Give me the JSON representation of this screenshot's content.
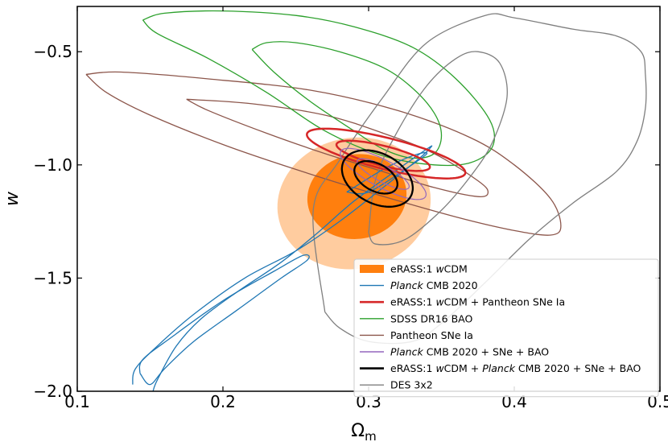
{
  "chart_data": {
    "type": "contour",
    "title": "",
    "xlabel": "Ω",
    "xlabel_sub": "m",
    "ylabel": "w",
    "xlim": [
      0.1,
      0.5
    ],
    "ylim": [
      -2.0,
      -0.3
    ],
    "x_ticks": [
      0.1,
      0.2,
      0.3,
      0.4,
      0.5
    ],
    "x_tick_labels": [
      "0.1",
      "0.2",
      "0.3",
      "0.4",
      "0.5"
    ],
    "y_ticks": [
      -2.0,
      -1.5,
      -1.0,
      -0.5
    ],
    "y_tick_labels": [
      "−2.0",
      "−1.5",
      "−1.0",
      "−0.5"
    ],
    "grid": false,
    "legend_position": "lower-right",
    "legend": [
      {
        "key": "erass_wcdm",
        "parts": [
          {
            "t": "eRASS:1 "
          },
          {
            "t": "w",
            "i": true
          },
          {
            "t": "CDM"
          }
        ],
        "color": "#ff7f0e",
        "style": "patch"
      },
      {
        "key": "planck",
        "parts": [
          {
            "t": "Planck",
            "i": true
          },
          {
            "t": " CMB 2020"
          }
        ],
        "color": "#1f77b4",
        "style": "line"
      },
      {
        "key": "erass_sne",
        "parts": [
          {
            "t": "eRASS:1 "
          },
          {
            "t": "w",
            "i": true
          },
          {
            "t": "CDM + Pantheon SNe Ia"
          }
        ],
        "color": "#d62728",
        "style": "thick"
      },
      {
        "key": "sdss",
        "parts": [
          {
            "t": "SDSS DR16 BAO"
          }
        ],
        "color": "#2ca02c",
        "style": "line"
      },
      {
        "key": "pantheon",
        "parts": [
          {
            "t": "Pantheon SNe Ia"
          }
        ],
        "color": "#8c564b",
        "style": "line"
      },
      {
        "key": "planck_sne_bao",
        "parts": [
          {
            "t": "Planck",
            "i": true
          },
          {
            "t": " CMB 2020 + SNe + BAO"
          }
        ],
        "color": "#9467bd",
        "style": "line"
      },
      {
        "key": "erass_all",
        "parts": [
          {
            "t": "eRASS:1 "
          },
          {
            "t": "w",
            "i": true
          },
          {
            "t": "CDM + "
          },
          {
            "t": "Planck",
            "i": true
          },
          {
            "t": " CMB 2020 + SNe + BAO"
          }
        ],
        "color": "#000000",
        "style": "thick"
      },
      {
        "key": "des",
        "parts": [
          {
            "t": "DES 3x2"
          }
        ],
        "color": "#7f7f7f",
        "style": "line"
      }
    ],
    "series": [
      {
        "key": "erass_wcdm",
        "kind": "filled-ellipse",
        "color": "#ff7f0e",
        "levels": [
          {
            "cx": 0.29,
            "cy": -1.17,
            "a": 0.045,
            "b": 0.34,
            "angle_deg": 10,
            "opacity": 0.4
          },
          {
            "cx": 0.292,
            "cy": -1.14,
            "a": 0.029,
            "b": 0.22,
            "angle_deg": 10,
            "opacity": 1.0
          }
        ]
      },
      {
        "key": "pantheon",
        "kind": "path",
        "color": "#8c564b",
        "width": 1.3,
        "contours": [
          [
            [
              0.106,
              -0.6
            ],
            [
              0.13,
              -0.59
            ],
            [
              0.19,
              -0.62
            ],
            [
              0.26,
              -0.67
            ],
            [
              0.32,
              -0.76
            ],
            [
              0.37,
              -0.88
            ],
            [
              0.4,
              -1.0
            ],
            [
              0.425,
              -1.15
            ],
            [
              0.432,
              -1.27
            ],
            [
              0.425,
              -1.31
            ],
            [
              0.4,
              -1.29
            ],
            [
              0.36,
              -1.23
            ],
            [
              0.3,
              -1.12
            ],
            [
              0.25,
              -1.02
            ],
            [
              0.2,
              -0.91
            ],
            [
              0.15,
              -0.78
            ],
            [
              0.12,
              -0.68
            ],
            [
              0.106,
              -0.6
            ]
          ],
          [
            [
              0.175,
              -0.71
            ],
            [
              0.22,
              -0.73
            ],
            [
              0.27,
              -0.78
            ],
            [
              0.31,
              -0.86
            ],
            [
              0.345,
              -0.95
            ],
            [
              0.375,
              -1.07
            ],
            [
              0.382,
              -1.12
            ],
            [
              0.375,
              -1.14
            ],
            [
              0.345,
              -1.1
            ],
            [
              0.31,
              -1.03
            ],
            [
              0.27,
              -0.95
            ],
            [
              0.23,
              -0.86
            ],
            [
              0.19,
              -0.76
            ],
            [
              0.175,
              -0.71
            ]
          ]
        ]
      },
      {
        "key": "sdss",
        "kind": "path",
        "color": "#2ca02c",
        "width": 1.3,
        "contours": [
          [
            [
              0.145,
              -0.36
            ],
            [
              0.16,
              -0.33
            ],
            [
              0.2,
              -0.32
            ],
            [
              0.25,
              -0.34
            ],
            [
              0.29,
              -0.39
            ],
            [
              0.33,
              -0.48
            ],
            [
              0.36,
              -0.62
            ],
            [
              0.383,
              -0.8
            ],
            [
              0.385,
              -0.92
            ],
            [
              0.37,
              -0.99
            ],
            [
              0.345,
              -1.0
            ],
            [
              0.31,
              -0.96
            ],
            [
              0.27,
              -0.85
            ],
            [
              0.23,
              -0.68
            ],
            [
              0.19,
              -0.53
            ],
            [
              0.155,
              -0.42
            ],
            [
              0.145,
              -0.36
            ]
          ],
          [
            [
              0.22,
              -0.49
            ],
            [
              0.23,
              -0.46
            ],
            [
              0.25,
              -0.46
            ],
            [
              0.28,
              -0.5
            ],
            [
              0.31,
              -0.57
            ],
            [
              0.33,
              -0.66
            ],
            [
              0.345,
              -0.77
            ],
            [
              0.35,
              -0.87
            ],
            [
              0.345,
              -0.95
            ],
            [
              0.33,
              -0.97
            ],
            [
              0.31,
              -0.93
            ],
            [
              0.29,
              -0.85
            ],
            [
              0.26,
              -0.72
            ],
            [
              0.235,
              -0.59
            ],
            [
              0.22,
              -0.49
            ]
          ]
        ]
      },
      {
        "key": "des",
        "kind": "path",
        "color": "#7f7f7f",
        "width": 1.3,
        "contours": [
          [
            [
              0.27,
              -1.65
            ],
            [
              0.262,
              -1.2
            ],
            [
              0.28,
              -0.98
            ],
            [
              0.31,
              -0.7
            ],
            [
              0.34,
              -0.46
            ],
            [
              0.38,
              -0.34
            ],
            [
              0.4,
              -0.35
            ],
            [
              0.44,
              -0.4
            ],
            [
              0.47,
              -0.43
            ],
            [
              0.487,
              -0.5
            ],
            [
              0.49,
              -0.6
            ],
            [
              0.49,
              -0.75
            ],
            [
              0.484,
              -0.9
            ],
            [
              0.47,
              -1.03
            ],
            [
              0.44,
              -1.17
            ],
            [
              0.41,
              -1.33
            ],
            [
              0.38,
              -1.52
            ],
            [
              0.35,
              -1.7
            ],
            [
              0.33,
              -1.78
            ],
            [
              0.3,
              -1.78
            ],
            [
              0.28,
              -1.72
            ],
            [
              0.27,
              -1.65
            ]
          ],
          [
            [
              0.3,
              -1.3
            ],
            [
              0.305,
              -1.06
            ],
            [
              0.32,
              -0.85
            ],
            [
              0.34,
              -0.65
            ],
            [
              0.36,
              -0.53
            ],
            [
              0.375,
              -0.5
            ],
            [
              0.39,
              -0.55
            ],
            [
              0.395,
              -0.7
            ],
            [
              0.385,
              -0.9
            ],
            [
              0.37,
              -1.05
            ],
            [
              0.35,
              -1.2
            ],
            [
              0.325,
              -1.33
            ],
            [
              0.305,
              -1.35
            ],
            [
              0.3,
              -1.3
            ]
          ]
        ]
      },
      {
        "key": "planck",
        "kind": "path",
        "color": "#1f77b4",
        "width": 1.3,
        "contours": [
          [
            [
              0.138,
              -1.97
            ],
            [
              0.14,
              -1.9
            ],
            [
              0.155,
              -1.8
            ],
            [
              0.18,
              -1.66
            ],
            [
              0.215,
              -1.5
            ],
            [
              0.25,
              -1.38
            ],
            [
              0.28,
              -1.25
            ],
            [
              0.31,
              -1.1
            ],
            [
              0.335,
              -0.97
            ],
            [
              0.343,
              -0.92
            ],
            [
              0.34,
              -0.93
            ],
            [
              0.32,
              -1.02
            ],
            [
              0.29,
              -1.16
            ],
            [
              0.265,
              -1.3
            ],
            [
              0.24,
              -1.43
            ],
            [
              0.21,
              -1.56
            ],
            [
              0.185,
              -1.68
            ],
            [
              0.168,
              -1.8
            ],
            [
              0.155,
              -1.95
            ],
            [
              0.152,
              -2.0
            ]
          ],
          [
            [
              0.143,
              -1.92
            ],
            [
              0.145,
              -1.86
            ],
            [
              0.165,
              -1.76
            ],
            [
              0.2,
              -1.6
            ],
            [
              0.235,
              -1.47
            ],
            [
              0.255,
              -1.4
            ],
            [
              0.258,
              -1.42
            ],
            [
              0.24,
              -1.5
            ],
            [
              0.21,
              -1.64
            ],
            [
              0.18,
              -1.78
            ],
            [
              0.16,
              -1.9
            ],
            [
              0.15,
              -1.97
            ],
            [
              0.143,
              -1.92
            ]
          ],
          [
            [
              0.285,
              -1.12
            ],
            [
              0.31,
              -1.02
            ],
            [
              0.33,
              -0.96
            ],
            [
              0.34,
              -0.95
            ],
            [
              0.325,
              -1.02
            ],
            [
              0.3,
              -1.12
            ],
            [
              0.285,
              -1.12
            ]
          ]
        ]
      },
      {
        "key": "erass_sne",
        "kind": "ellipse",
        "color": "#d62728",
        "width": 2.5,
        "levels": [
          {
            "cx": 0.312,
            "cy": -0.95,
            "a": 0.056,
            "b": 0.069,
            "angle_deg": 76
          },
          {
            "cx": 0.31,
            "cy": -0.96,
            "a": 0.033,
            "b": 0.044,
            "angle_deg": 76
          }
        ]
      },
      {
        "key": "planck_sne_bao",
        "kind": "ellipse",
        "color": "#9467bd",
        "width": 1.2,
        "levels": [
          {
            "cx": 0.31,
            "cy": -1.04,
            "a": 0.033,
            "b": 0.06,
            "angle_deg": 62
          },
          {
            "cx": 0.31,
            "cy": -1.04,
            "a": 0.02,
            "b": 0.035,
            "angle_deg": 62
          }
        ]
      },
      {
        "key": "erass_all",
        "kind": "ellipse",
        "color": "#000000",
        "width": 2.3,
        "levels": [
          {
            "cx": 0.306,
            "cy": -1.06,
            "a": 0.026,
            "b": 0.11,
            "angle_deg": 62
          },
          {
            "cx": 0.305,
            "cy": -1.055,
            "a": 0.016,
            "b": 0.06,
            "angle_deg": 62
          }
        ]
      }
    ]
  }
}
